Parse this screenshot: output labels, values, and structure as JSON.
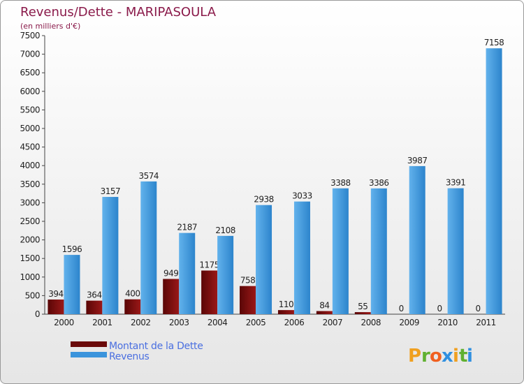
{
  "chart_data": {
    "type": "bar",
    "title": "Revenus/Dette - MARIPASOULA",
    "subtitle": "(en milliers d'€)",
    "categories": [
      "2000",
      "2001",
      "2002",
      "2003",
      "2004",
      "2005",
      "2006",
      "2007",
      "2008",
      "2009",
      "2010",
      "2011"
    ],
    "series": [
      {
        "name": "Montant de la Dette",
        "color": "#8b1010",
        "values": [
          394,
          364,
          400,
          949,
          1175,
          758,
          110,
          84,
          55,
          0,
          0,
          0
        ]
      },
      {
        "name": "Revenus",
        "color": "#3b94dc",
        "values": [
          1596,
          3157,
          3574,
          2187,
          2108,
          2938,
          3033,
          3388,
          3386,
          3987,
          3391,
          7158
        ]
      }
    ],
    "ylim": [
      0,
      7500
    ],
    "yticks": [
      0,
      500,
      1000,
      1500,
      2000,
      2500,
      3000,
      3500,
      4000,
      4500,
      5000,
      5500,
      6000,
      6500,
      7000,
      7500
    ],
    "grid": false,
    "legend_position": "bottom-left"
  },
  "logo": {
    "text": "Proxiti",
    "letters": [
      "P",
      "r",
      "o",
      "x",
      "i",
      "t",
      "i"
    ]
  }
}
